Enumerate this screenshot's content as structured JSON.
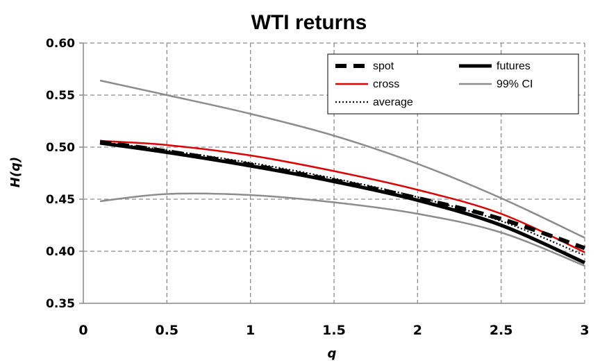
{
  "chart_data": {
    "type": "line",
    "title": "WTI returns",
    "xlabel": "q",
    "ylabel": "H(q)",
    "xlim": [
      0,
      3
    ],
    "ylim": [
      0.35,
      0.6
    ],
    "x_ticks": [
      "0",
      "0.5",
      "1",
      "1.5",
      "2",
      "2.5",
      "3"
    ],
    "y_ticks": [
      "0.35",
      "0.40",
      "0.45",
      "0.50",
      "0.55",
      "0.60"
    ],
    "grid": true,
    "legend_position": "top-right",
    "x": [
      0.1,
      0.5,
      1.0,
      1.5,
      2.0,
      2.5,
      3.0
    ],
    "series": [
      {
        "name": "spot",
        "style": "dashed",
        "color": "#000000",
        "values": [
          0.505,
          0.496,
          0.483,
          0.468,
          0.451,
          0.431,
          0.403
        ]
      },
      {
        "name": "futures",
        "style": "solid-thick",
        "color": "#000000",
        "values": [
          0.504,
          0.495,
          0.482,
          0.467,
          0.449,
          0.425,
          0.389
        ]
      },
      {
        "name": "cross",
        "style": "solid",
        "color": "#e00000",
        "values": [
          0.506,
          0.502,
          0.492,
          0.477,
          0.459,
          0.436,
          0.399
        ]
      },
      {
        "name": "99% CI",
        "style": "solid",
        "color": "#8c8c8c",
        "values": [
          0.564,
          0.55,
          0.532,
          0.511,
          0.484,
          0.451,
          0.413
        ]
      },
      {
        "name": "",
        "style": "solid",
        "color": "#8c8c8c",
        "values": [
          0.448,
          0.455,
          0.454,
          0.447,
          0.436,
          0.418,
          0.386
        ]
      },
      {
        "name": "average",
        "style": "dotted",
        "color": "#000000",
        "values": [
          0.505,
          0.497,
          0.485,
          0.47,
          0.452,
          0.429,
          0.396
        ]
      }
    ]
  }
}
